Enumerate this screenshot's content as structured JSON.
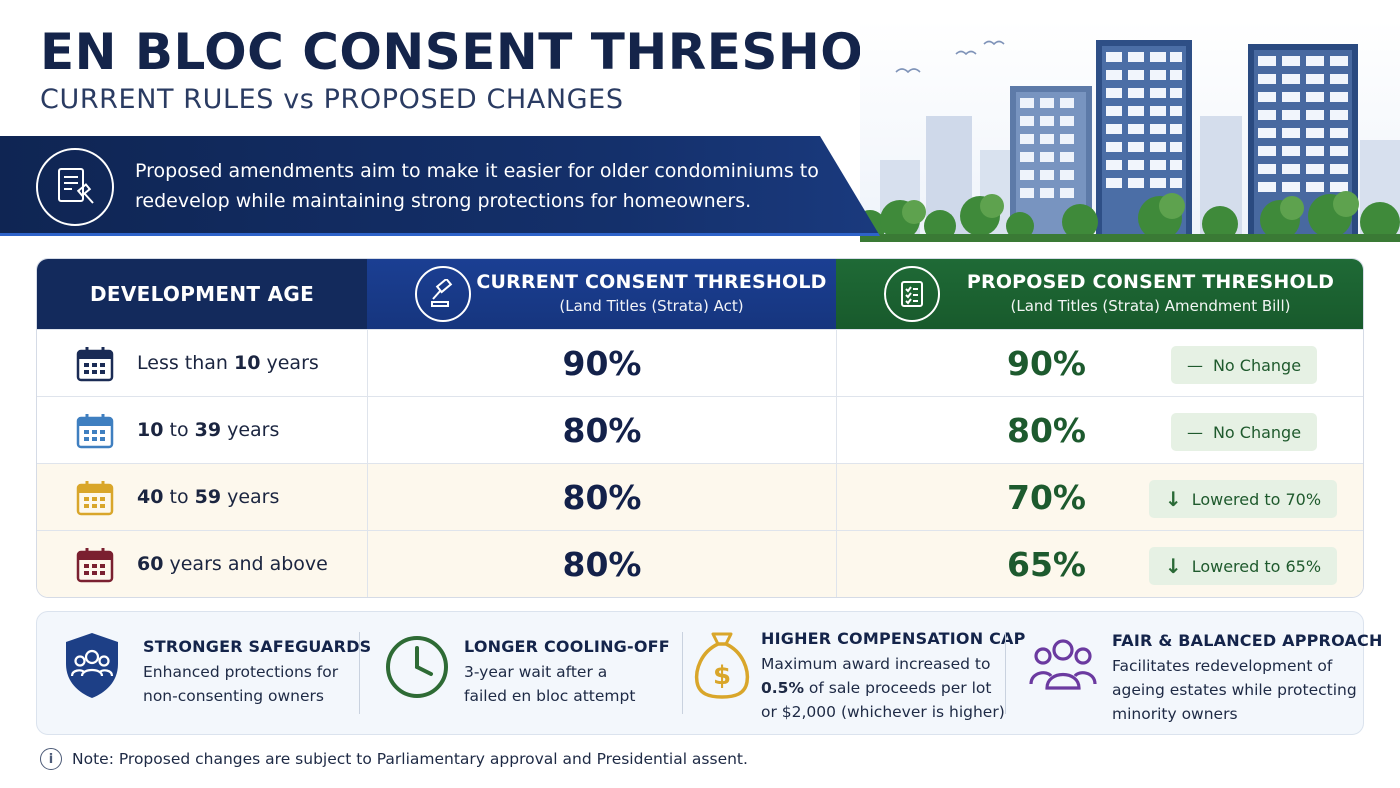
{
  "header": {
    "title": "EN BLOC CONSENT THRESHOLDS",
    "subtitle": "CURRENT RULES vs PROPOSED CHANGES"
  },
  "banner": {
    "line1": "Proposed amendments aim to make it easier for older condominiums to",
    "line2": "redevelop while maintaining strong protections for homeowners.",
    "icon": "legal-document-gavel-icon"
  },
  "table": {
    "headers": {
      "age": "DEVELOPMENT AGE",
      "current_title": "CURRENT CONSENT THRESHOLD",
      "current_sub": "(Land Titles (Strata) Act)",
      "proposed_title": "PROPOSED CONSENT THRESHOLD",
      "proposed_sub": "(Land Titles (Strata) Amendment Bill)"
    },
    "rows": [
      {
        "age_pre": "Less than ",
        "age_bold": "10",
        "age_post": " years",
        "current": "90%",
        "proposed": "90%",
        "change": "No Change",
        "change_symbol": "—",
        "row_bg": "#ffffff",
        "icon_color": "#1a2b55"
      },
      {
        "age_pre": "",
        "age_bold": "10",
        "age_mid": " to ",
        "age_bold2": "39",
        "age_post": " years",
        "current": "80%",
        "proposed": "80%",
        "change": "No Change",
        "change_symbol": "—",
        "row_bg": "#ffffff",
        "icon_color": "#3f7fc0"
      },
      {
        "age_pre": "",
        "age_bold": "40",
        "age_mid": " to ",
        "age_bold2": "59",
        "age_post": " years",
        "current": "80%",
        "proposed": "70%",
        "change": "Lowered to 70%",
        "change_symbol": "↓",
        "row_bg": "#fdf8ed",
        "icon_color": "#d9a62a"
      },
      {
        "age_pre": "",
        "age_bold": "60",
        "age_post": " years and above",
        "current": "80%",
        "proposed": "65%",
        "change": "Lowered to 65%",
        "change_symbol": "↓",
        "row_bg": "#fdf8ed",
        "icon_color": "#7a2030"
      }
    ]
  },
  "features": [
    {
      "title": "STRONGER SAFEGUARDS",
      "lines": [
        "Enhanced protections for",
        "non-consenting owners"
      ],
      "icon": "shield-people-icon",
      "color": "#1d3f86"
    },
    {
      "title": "LONGER COOLING-OFF",
      "lines": [
        "3-year wait after a",
        "failed en bloc attempt"
      ],
      "icon": "clock-icon",
      "color": "#2e6b35"
    },
    {
      "title": "HIGHER COMPENSATION CAP",
      "lines": [
        "Maximum award increased to",
        "0.5% of sale proceeds per lot",
        "or $2,000 (whichever is higher)"
      ],
      "icon": "money-bag-icon",
      "color": "#d9a62a"
    },
    {
      "title": "FAIR & BALANCED APPROACH",
      "lines": [
        "Facilitates redevelopment of",
        "ageing estates while protecting",
        "minority owners"
      ],
      "icon": "people-group-icon",
      "color": "#6b3aa0"
    }
  ],
  "note": "Note: Proposed changes are subject to Parliamentary approval and Presidential assent.",
  "colors": {
    "navy": "#132a5c",
    "blue_header": "#1b3f93",
    "green_header": "#1f6a36",
    "green_text": "#1d5a2e"
  }
}
